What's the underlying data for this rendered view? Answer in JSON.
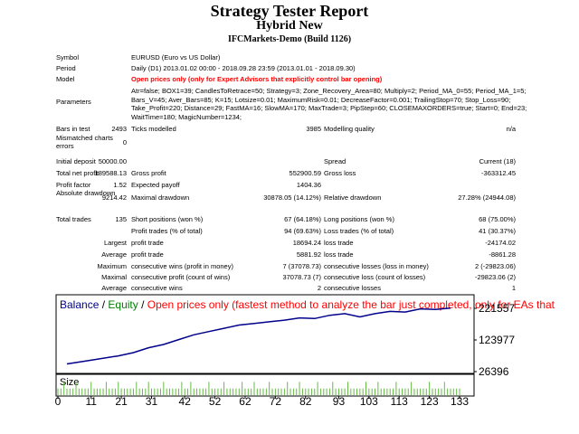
{
  "header": {
    "title": "Strategy Tester Report",
    "subtitle": "Hybrid New",
    "server": "IFCMarkets-Demo (Build 1126)"
  },
  "info": [
    {
      "label": "Symbol",
      "value": "EURUSD (Euro vs US Dollar)"
    },
    {
      "label": "Period",
      "value": "Daily (D1) 2013.01.02 00:00 - 2018.09.28 23:59 (2013.01.01 - 2018.09.30)"
    },
    {
      "label": "Model",
      "value": "Open prices only (only for Expert Advisors that explicitly control bar opening)",
      "color": "#ff0000"
    }
  ],
  "parameters": {
    "label": "Parameters",
    "lines": [
      "Atr=false; BOX1=39; CandlesToRetrace=50; Strategy=3; Zone_Recovery_Area=80; Multiply=2; Period_MA_0=55; Period_MA_1=5;",
      "Bars_V=45; Aver_Bars=85; K=15; Lotsize=0.01; MaximumRisk=0.01; DecreaseFactor=0.001; TrailingStop=70; Stop_Loss=90;",
      "Take_Profit=220; Distance=29; FastMA=16; SlowMA=170; MaxTrade=3; PipStep=60; CLOSEMAXORDERS=true; Start=0; End=23;",
      "WaitTime=180; MagicNumber=1234;"
    ]
  },
  "stats": [
    [
      "Bars in test",
      "2493",
      "Ticks modelled",
      "3985",
      "Modelling quality",
      "n/a"
    ],
    [
      "Mismatched charts errors",
      "0",
      null,
      null,
      null,
      null
    ],
    [
      "Initial deposit",
      "50000.00",
      null,
      null,
      "Spread",
      "Current (18)"
    ],
    [
      "Total net profit",
      "189588.13",
      "Gross profit",
      "552900.59",
      "Gross loss",
      "-363312.45"
    ],
    [
      "Profit factor",
      "1.52",
      "Expected payoff",
      "1404.36",
      null,
      null
    ],
    [
      "Absolute drawdown",
      "9214.42",
      "Maximal drawdown",
      "30878.05 (14.12%)",
      "Relative drawdown",
      "27.28% (24944.08)"
    ],
    [
      "Total trades",
      "135",
      "Short positions (won %)",
      "67 (64.18%)",
      "Long positions (won %)",
      "68 (75.00%)"
    ],
    [
      null,
      null,
      "Profit trades (% of total)",
      "94 (69.63%)",
      "Loss trades (% of total)",
      "41 (30.37%)"
    ],
    [
      null,
      "Largest",
      "profit trade",
      "18694.24",
      "loss trade",
      "-24174.02"
    ],
    [
      null,
      "Average",
      "profit trade",
      "5881.92",
      "loss trade",
      "-8861.28"
    ],
    [
      null,
      "Maximum",
      "consecutive wins (profit in money)",
      "7 (37078.73)",
      "consecutive losses (loss in money)",
      "2 (-29823.06)"
    ],
    [
      null,
      "Maximal",
      "consecutive profit (count of wins)",
      "37078.73 (7)",
      "consecutive loss (count of losses)",
      "-29823.06 (2)"
    ],
    [
      null,
      "Average",
      "consecutive wins",
      "2",
      "consecutive losses",
      "1"
    ]
  ],
  "chart_data": {
    "type": "line",
    "legend": [
      {
        "name": "Balance",
        "color": "#00008b"
      },
      {
        "name": "Equity",
        "color": "#008000"
      },
      {
        "name": "Open prices only (fastest method to analyze the bar just completed, only for EAs that",
        "color": "#ff0000"
      }
    ],
    "size_label": "Size",
    "x": [
      3,
      10,
      20,
      25,
      30,
      35,
      40,
      45,
      50,
      55,
      60,
      65,
      70,
      75,
      80,
      85,
      90,
      95,
      100,
      105,
      110,
      115,
      120,
      125,
      130
    ],
    "series": [
      {
        "name": "Balance",
        "color": "#00008b",
        "values": [
          50000,
          60000,
          75000,
          85000,
          100000,
          110000,
          125000,
          140000,
          150000,
          160000,
          170000,
          175000,
          180000,
          185000,
          192000,
          190000,
          200000,
          205000,
          195000,
          205000,
          212000,
          210000,
          220000,
          218000,
          222000
        ]
      }
    ],
    "xlim": [
      0,
      133
    ],
    "xticks": [
      0,
      11,
      21,
      31,
      42,
      52,
      62,
      72,
      82,
      93,
      103,
      113,
      123,
      133
    ],
    "ylim": [
      23600,
      260600
    ],
    "yticks": [
      221557,
      123977,
      26396
    ],
    "sizes": {
      "color": "#66bb44",
      "lim": [
        0,
        0.03
      ],
      "values": [
        0.01,
        0.01,
        0.02,
        0.01,
        0.01,
        0.01,
        0.02,
        0.01,
        0.01,
        0.01,
        0.01,
        0.02,
        0.01,
        0.01,
        0.01,
        0.01,
        0.02,
        0.01,
        0.01,
        0.01,
        0.02,
        0.01,
        0.01,
        0.01,
        0.01,
        0.01,
        0.02,
        0.01,
        0.01,
        0.01,
        0.02,
        0.01,
        0.01,
        0.01,
        0.01,
        0.02,
        0.01,
        0.01,
        0.01,
        0.01,
        0.01,
        0.02,
        0.01,
        0.01,
        0.02,
        0.01,
        0.01,
        0.01,
        0.01,
        0.01,
        0.02,
        0.01,
        0.01,
        0.01,
        0.01,
        0.02,
        0.01,
        0.01,
        0.01,
        0.01,
        0.01,
        0.02,
        0.01,
        0.01,
        0.01,
        0.02,
        0.01,
        0.01,
        0.01,
        0.01,
        0.02,
        0.01,
        0.01,
        0.01,
        0.01,
        0.01,
        0.02,
        0.01,
        0.01,
        0.01,
        0.02,
        0.01,
        0.01,
        0.01,
        0.01,
        0.01,
        0.02,
        0.01,
        0.01,
        0.01,
        0.01,
        0.02,
        0.01,
        0.01,
        0.01,
        0.01,
        0.02,
        0.01,
        0.01,
        0.01,
        0.01,
        0.01,
        0.02,
        0.01,
        0.01,
        0.01,
        0.02,
        0.01,
        0.01,
        0.01,
        0.01,
        0.01,
        0.02,
        0.01,
        0.01,
        0.01,
        0.01,
        0.02,
        0.01,
        0.01,
        0.01,
        0.01,
        0.01,
        0.02,
        0.01,
        0.01,
        0.01,
        0.01,
        0.02,
        0.01,
        0.01,
        0.01,
        0.01,
        0.01
      ]
    }
  }
}
